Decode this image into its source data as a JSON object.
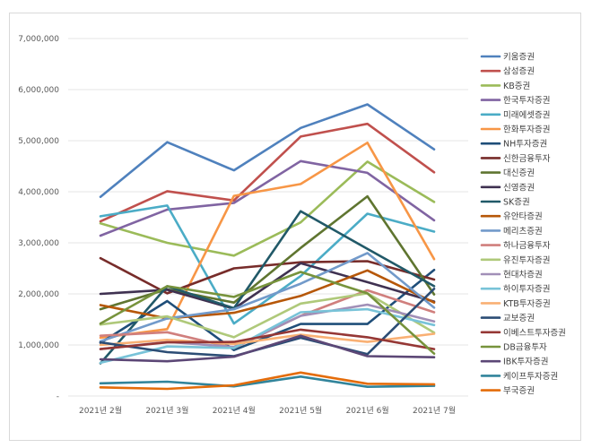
{
  "chart_data": {
    "type": "line",
    "title": "",
    "xlabel": "",
    "ylabel": "",
    "categories": [
      "2021년 2월",
      "2021년 3월",
      "2021년 4월",
      "2021년 5월",
      "2021년 6월",
      "2021년 7월"
    ],
    "ylim": [
      0,
      7000000
    ],
    "yticks": [
      0,
      1000000,
      2000000,
      3000000,
      4000000,
      5000000,
      6000000,
      7000000
    ],
    "ytick_labels": [
      "-",
      "1,000,000",
      "2,000,000",
      "3,000,000",
      "4,000,000",
      "5,000,000",
      "6,000,000",
      "7,000,000"
    ],
    "grid": true,
    "legend_position": "right",
    "series": [
      {
        "name": "키움증권",
        "color": "#4f81bd",
        "values": [
          3900000,
          4970000,
          4420000,
          5250000,
          5710000,
          4830000
        ]
      },
      {
        "name": "삼성증권",
        "color": "#c0504d",
        "values": [
          3420000,
          4010000,
          3830000,
          5080000,
          5330000,
          4380000
        ]
      },
      {
        "name": "KB증권",
        "color": "#9bbb59",
        "values": [
          3380000,
          3000000,
          2750000,
          3400000,
          4590000,
          3800000
        ]
      },
      {
        "name": "한국투자증권",
        "color": "#8064a2",
        "values": [
          3140000,
          3650000,
          3780000,
          4600000,
          4370000,
          3440000
        ]
      },
      {
        "name": "미래에셋증권",
        "color": "#4bacc6",
        "values": [
          3520000,
          3730000,
          1420000,
          2350000,
          3570000,
          3220000
        ]
      },
      {
        "name": "한화투자증권",
        "color": "#f79646",
        "values": [
          1140000,
          1310000,
          3920000,
          4150000,
          4960000,
          2680000
        ]
      },
      {
        "name": "NH투자증권",
        "color": "#1f4e79",
        "values": [
          1040000,
          1860000,
          900000,
          1410000,
          1410000,
          2470000
        ]
      },
      {
        "name": "신한금융투자",
        "color": "#772c2a",
        "values": [
          2700000,
          2010000,
          2500000,
          2620000,
          2640000,
          2280000
        ]
      },
      {
        "name": "대신증권",
        "color": "#5f7530",
        "values": [
          1700000,
          2090000,
          1830000,
          2900000,
          3910000,
          1990000
        ]
      },
      {
        "name": "신영증권",
        "color": "#3f3151",
        "values": [
          2000000,
          2080000,
          1710000,
          2600000,
          2230000,
          1850000
        ]
      },
      {
        "name": "SK증권",
        "color": "#215968",
        "values": [
          640000,
          2150000,
          1720000,
          3620000,
          2880000,
          2150000
        ]
      },
      {
        "name": "유안타증권",
        "color": "#b65708",
        "values": [
          1780000,
          1520000,
          1630000,
          1960000,
          2460000,
          1830000
        ]
      },
      {
        "name": "메리츠증권",
        "color": "#729aca",
        "values": [
          1070000,
          1520000,
          1700000,
          2200000,
          2800000,
          1730000
        ]
      },
      {
        "name": "하나금융투자",
        "color": "#d07f7d",
        "values": [
          1180000,
          1250000,
          940000,
          1570000,
          2070000,
          1640000
        ]
      },
      {
        "name": "유진투자증권",
        "color": "#afc97a",
        "values": [
          1400000,
          1560000,
          1150000,
          1810000,
          2010000,
          1240000
        ]
      },
      {
        "name": "현대차증권",
        "color": "#a18fb7",
        "values": [
          920000,
          1060000,
          960000,
          1570000,
          1790000,
          1460000
        ]
      },
      {
        "name": "하이투자증권",
        "color": "#78c3d8",
        "values": [
          650000,
          970000,
          940000,
          1640000,
          1700000,
          1390000
        ]
      },
      {
        "name": "KTB투자증권",
        "color": "#f9b074",
        "values": [
          1000000,
          1100000,
          1020000,
          1200000,
          1060000,
          1220000
        ]
      },
      {
        "name": "교보증권",
        "color": "#2c4d75",
        "values": [
          1050000,
          860000,
          780000,
          1140000,
          820000,
          2100000
        ]
      },
      {
        "name": "이베스트투자증권",
        "color": "#953735",
        "values": [
          920000,
          1050000,
          1060000,
          1300000,
          1150000,
          920000
        ]
      },
      {
        "name": "DB금융투자",
        "color": "#77933c",
        "values": [
          1420000,
          2150000,
          1940000,
          2430000,
          2010000,
          830000
        ]
      },
      {
        "name": "IBK투자증권",
        "color": "#5c4776",
        "values": [
          720000,
          680000,
          770000,
          1180000,
          780000,
          760000
        ]
      },
      {
        "name": "케이프투자증권",
        "color": "#31849b",
        "values": [
          250000,
          280000,
          190000,
          380000,
          180000,
          200000
        ]
      },
      {
        "name": "부국증권",
        "color": "#e46c0a",
        "values": [
          170000,
          140000,
          210000,
          460000,
          240000,
          230000
        ]
      }
    ]
  }
}
